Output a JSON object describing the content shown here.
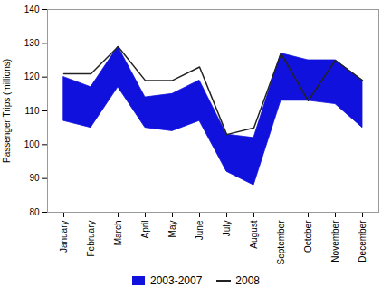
{
  "chart_data": {
    "type": "line",
    "categories": [
      "January",
      "February",
      "March",
      "April",
      "May",
      "June",
      "July",
      "August",
      "September",
      "October",
      "November",
      "December"
    ],
    "series": [
      {
        "name": "2003-2007",
        "type": "band",
        "color": "#1111dd",
        "upper": [
          120,
          117,
          129,
          114,
          115,
          119,
          103,
          102,
          127,
          125,
          125,
          119
        ],
        "lower": [
          107,
          105,
          117,
          105,
          104,
          107,
          92,
          88,
          113,
          113,
          112,
          105
        ]
      },
      {
        "name": "2008",
        "type": "line",
        "color": "#222222",
        "values": [
          121,
          121,
          129,
          119,
          119,
          123,
          103,
          105,
          127,
          113,
          125,
          119
        ]
      }
    ],
    "ylabel": "Passenger Trips (millions)",
    "ylim": [
      80,
      140
    ],
    "yticks": [
      80,
      90,
      100,
      110,
      120,
      130,
      140
    ],
    "grid": false,
    "legend": "bottom"
  }
}
